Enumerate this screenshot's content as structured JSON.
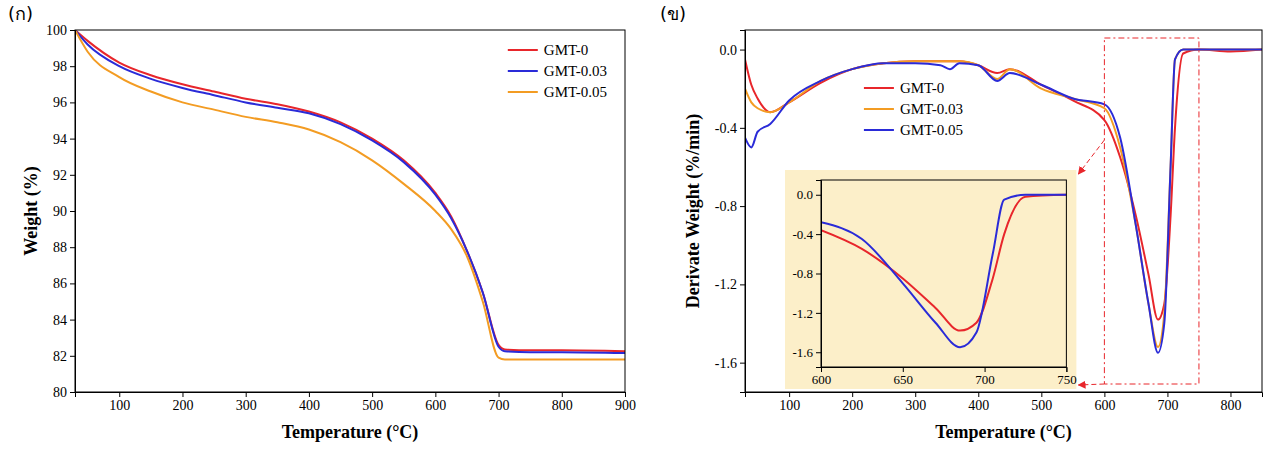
{
  "chart_data": [
    {
      "type": "line",
      "title": "(ก)",
      "x_label": "Temperature (°C)",
      "y_label": "Weight (%)",
      "x": [
        30,
        50,
        100,
        150,
        200,
        250,
        300,
        350,
        400,
        450,
        500,
        550,
        600,
        625,
        650,
        675,
        700,
        710,
        750,
        800,
        900
      ],
      "series": [
        {
          "name": "GMT-0",
          "color": "#e8262b",
          "values": [
            100,
            99.4,
            98.2,
            97.5,
            97.0,
            96.6,
            96.2,
            95.9,
            95.5,
            94.9,
            94.0,
            92.8,
            91.0,
            89.7,
            87.8,
            85.5,
            82.6,
            82.35,
            82.3,
            82.3,
            82.25
          ]
        },
        {
          "name": "GMT-0.03",
          "color": "#2a2bd8",
          "values": [
            100,
            99.2,
            98.0,
            97.3,
            96.8,
            96.4,
            96.0,
            95.7,
            95.4,
            94.8,
            93.9,
            92.7,
            90.9,
            89.6,
            87.8,
            85.5,
            82.5,
            82.25,
            82.2,
            82.2,
            82.15
          ]
        },
        {
          "name": "GMT-0.05",
          "color": "#f39c23",
          "values": [
            100,
            98.8,
            97.4,
            96.6,
            96.0,
            95.6,
            95.2,
            94.9,
            94.5,
            93.8,
            92.8,
            91.5,
            90.0,
            89.0,
            87.5,
            85.0,
            81.9,
            81.8,
            81.8,
            81.8,
            81.8
          ]
        }
      ],
      "xlim": [
        30,
        900
      ],
      "xticks": [
        100,
        200,
        300,
        400,
        500,
        600,
        700,
        800,
        900
      ],
      "ylim": [
        80,
        100
      ],
      "yticks": [
        80,
        82,
        84,
        86,
        88,
        90,
        92,
        94,
        96,
        98,
        100
      ],
      "legend": "upper right"
    },
    {
      "type": "line",
      "title": "(ข)",
      "x_label": "Temperature (°C)",
      "y_label": "Derivate Weight (%/min)",
      "x": [
        30,
        40,
        50,
        70,
        100,
        150,
        200,
        250,
        300,
        340,
        355,
        370,
        400,
        430,
        450,
        500,
        550,
        600,
        625,
        650,
        670,
        685,
        695,
        705,
        712,
        725,
        750,
        800,
        850
      ],
      "series": [
        {
          "name": "GMT-0",
          "color": "#e8262b",
          "values": [
            -0.05,
            -0.18,
            -0.25,
            -0.32,
            -0.27,
            -0.17,
            -0.1,
            -0.07,
            -0.06,
            -0.06,
            -0.06,
            -0.06,
            -0.08,
            -0.12,
            -0.1,
            -0.18,
            -0.26,
            -0.36,
            -0.55,
            -0.85,
            -1.15,
            -1.38,
            -1.3,
            -0.85,
            -0.4,
            -0.02,
            0,
            -0.01,
            0
          ]
        },
        {
          "name": "GMT-0.03",
          "color": "#f39c23",
          "values": [
            -0.2,
            -0.27,
            -0.3,
            -0.32,
            -0.27,
            -0.16,
            -0.1,
            -0.07,
            -0.06,
            -0.06,
            -0.06,
            -0.06,
            -0.08,
            -0.15,
            -0.1,
            -0.2,
            -0.25,
            -0.3,
            -0.5,
            -0.9,
            -1.3,
            -1.52,
            -1.35,
            -0.6,
            -0.05,
            0,
            0,
            0,
            0
          ]
        },
        {
          "name": "GMT-0.05",
          "color": "#2a2bd8",
          "values": [
            -0.45,
            -0.5,
            -0.42,
            -0.38,
            -0.26,
            -0.16,
            -0.1,
            -0.07,
            -0.07,
            -0.08,
            -0.1,
            -0.07,
            -0.08,
            -0.16,
            -0.12,
            -0.18,
            -0.25,
            -0.28,
            -0.45,
            -0.9,
            -1.3,
            -1.55,
            -1.4,
            -0.6,
            -0.05,
            0,
            0,
            0,
            0
          ]
        }
      ],
      "xlim": [
        30,
        850
      ],
      "xticks": [
        100,
        200,
        300,
        400,
        500,
        600,
        700,
        800
      ],
      "ylim": [
        -1.75,
        0.1
      ],
      "yticks": [
        {
          "value": 0,
          "label": "0.0"
        },
        -0.4,
        -0.8,
        -1.2,
        -1.6
      ],
      "legend": "upper center"
    },
    {
      "type": "line",
      "x": [
        600,
        625,
        650,
        670,
        685,
        695,
        705,
        712,
        725,
        750
      ],
      "series": [
        {
          "color": "#e8262b",
          "values": [
            -0.36,
            -0.55,
            -0.85,
            -1.15,
            -1.38,
            -1.3,
            -0.85,
            -0.4,
            -0.02,
            0
          ]
        },
        {
          "color": "#2a2bd8",
          "values": [
            -0.28,
            -0.45,
            -0.9,
            -1.3,
            -1.55,
            -1.4,
            -0.6,
            -0.05,
            0,
            0
          ]
        }
      ],
      "xlim": [
        600,
        750
      ],
      "xticks": [
        600,
        650,
        700,
        750
      ],
      "ylim": [
        -1.75,
        0.15
      ],
      "yticks": [
        {
          "value": 0,
          "label": "0.0"
        },
        -0.4,
        -0.8,
        -1.2,
        -1.6
      ]
    }
  ]
}
